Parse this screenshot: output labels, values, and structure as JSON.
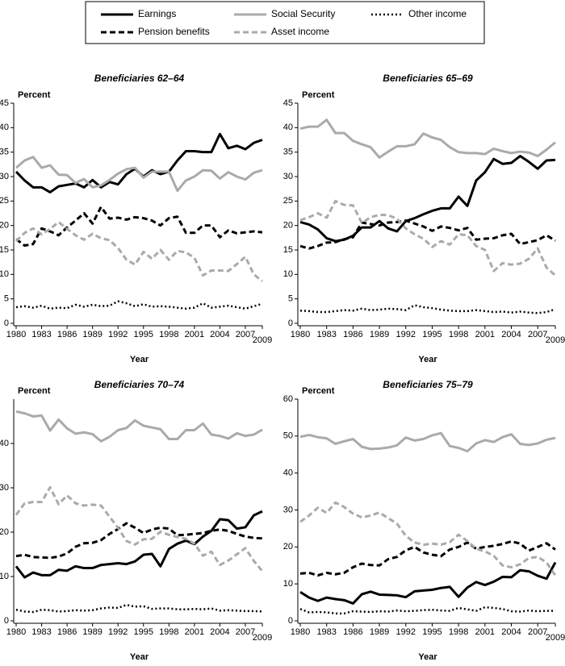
{
  "chart_data": [
    {
      "type": "line",
      "title": "Beneficiaries 62–64",
      "ylabel": "Percent",
      "xlabel": "Year",
      "x": [
        1980,
        1981,
        1982,
        1983,
        1984,
        1985,
        1986,
        1987,
        1988,
        1989,
        1990,
        1991,
        1992,
        1993,
        1994,
        1995,
        1996,
        1997,
        1998,
        1999,
        2000,
        2001,
        2002,
        2003,
        2004,
        2005,
        2006,
        2007,
        2008,
        2009
      ],
      "xlim": [
        1980,
        2009
      ],
      "xticks": [
        1980,
        1983,
        1986,
        1989,
        1992,
        1995,
        1998,
        2001,
        2004,
        2007,
        2009
      ],
      "ylim": [
        0,
        45
      ],
      "yticks": [
        0,
        5,
        10,
        15,
        20,
        25,
        30,
        35,
        40,
        45
      ],
      "series": [
        {
          "name": "Earnings",
          "color": "#000000",
          "style": "solid",
          "values": [
            31,
            29.2,
            27.8,
            27.8,
            26.8,
            28,
            28.3,
            28.6,
            27.8,
            29.3,
            27.8,
            28.9,
            28.4,
            30.5,
            31.6,
            30,
            31.3,
            30.5,
            31,
            33.3,
            35.2,
            35.2,
            35,
            35,
            38.7,
            35.8,
            36.3,
            35.6,
            36.9,
            37.5
          ]
        },
        {
          "name": "Social Security",
          "color": "#aaaaaa",
          "style": "solid",
          "values": [
            31.8,
            33.3,
            34,
            31.8,
            32.3,
            30.4,
            30.3,
            28.7,
            29.5,
            27.8,
            28.2,
            29.3,
            30.6,
            31.5,
            31.8,
            29.8,
            31,
            31,
            31,
            27.1,
            29.2,
            30,
            31.3,
            31.2,
            29.6,
            30.9,
            30,
            29.4,
            30.8,
            31.3
          ]
        },
        {
          "name": "Other income",
          "color": "#000000",
          "style": "dotted",
          "values": [
            3.3,
            3.5,
            3.2,
            3.6,
            3,
            3.2,
            3.1,
            3.8,
            3.4,
            3.8,
            3.5,
            3.6,
            4.5,
            4.1,
            3.5,
            3.9,
            3.4,
            3.5,
            3.4,
            3.2,
            3,
            3.2,
            4.1,
            3.2,
            3.4,
            3.6,
            3.3,
            3,
            3.5,
            4
          ]
        },
        {
          "name": "Pension benefits",
          "color": "#000000",
          "style": "dashed",
          "values": [
            17.2,
            15.9,
            16.2,
            19.4,
            18.8,
            18,
            19.6,
            21,
            22.5,
            20.4,
            23.8,
            21.4,
            21.6,
            21.2,
            21.7,
            21.5,
            21,
            20,
            21.5,
            21.8,
            18.5,
            18.5,
            20,
            20,
            17.6,
            19,
            18.4,
            18.6,
            18.8,
            18.6
          ]
        },
        {
          "name": "Asset income",
          "color": "#aaaaaa",
          "style": "dashed",
          "values": [
            16.8,
            18.5,
            19.4,
            18.2,
            19.3,
            20.7,
            19.3,
            18,
            17.1,
            18.3,
            17.4,
            17,
            15.4,
            13,
            12,
            14.6,
            13.2,
            15,
            13,
            14.8,
            14.5,
            13.4,
            9.8,
            10.8,
            10.8,
            10.7,
            12.1,
            13.6,
            10,
            8.6
          ]
        }
      ]
    },
    {
      "type": "line",
      "title": "Beneficiaries 65–69",
      "ylabel": "Percent",
      "xlabel": "Year",
      "x": [
        1980,
        1981,
        1982,
        1983,
        1984,
        1985,
        1986,
        1987,
        1988,
        1989,
        1990,
        1991,
        1992,
        1993,
        1994,
        1995,
        1996,
        1997,
        1998,
        1999,
        2000,
        2001,
        2002,
        2003,
        2004,
        2005,
        2006,
        2007,
        2008,
        2009
      ],
      "xlim": [
        1980,
        2009
      ],
      "xticks": [
        1980,
        1983,
        1986,
        1989,
        1992,
        1995,
        1998,
        2001,
        2004,
        2007,
        2009
      ],
      "ylim": [
        0,
        45
      ],
      "yticks": [
        0,
        5,
        10,
        15,
        20,
        25,
        30,
        35,
        40,
        45
      ],
      "series": [
        {
          "name": "Earnings",
          "color": "#000000",
          "style": "solid",
          "values": [
            20.7,
            20.2,
            19.2,
            17.4,
            16.8,
            17.1,
            17.9,
            19.6,
            19.6,
            20.9,
            19.4,
            18.8,
            20.9,
            21.5,
            22.3,
            23,
            23.5,
            23.5,
            25.9,
            24,
            29.2,
            30.9,
            33.6,
            32.6,
            32.8,
            34.2,
            33,
            31.6,
            33.3,
            33.4
          ]
        },
        {
          "name": "Social Security",
          "color": "#aaaaaa",
          "style": "solid",
          "values": [
            39.8,
            40.2,
            40.2,
            41.6,
            38.9,
            38.9,
            37.3,
            36.6,
            36,
            33.9,
            35.1,
            36.2,
            36.2,
            36.6,
            38.8,
            38,
            37.5,
            36,
            35,
            34.8,
            34.8,
            34.6,
            35.7,
            35.2,
            34.8,
            35.1,
            34.9,
            34.2,
            35.5,
            37
          ]
        },
        {
          "name": "Other income",
          "color": "#000000",
          "style": "dotted",
          "values": [
            2.6,
            2.5,
            2.3,
            2.3,
            2.5,
            2.7,
            2.6,
            3,
            2.7,
            2.8,
            3,
            2.9,
            2.7,
            3.7,
            3.3,
            3.1,
            2.8,
            2.6,
            2.5,
            2.5,
            2.7,
            2.5,
            2.3,
            2.4,
            2.2,
            2.4,
            2.2,
            2.1,
            2.3,
            2.9
          ]
        },
        {
          "name": "Pension benefits",
          "color": "#000000",
          "style": "dashed",
          "values": [
            15.8,
            15.3,
            15.8,
            16.5,
            16.6,
            17.2,
            17.6,
            20.6,
            20.3,
            20,
            20.6,
            20.7,
            21,
            20.4,
            19.8,
            18.9,
            19.8,
            19.5,
            19,
            19.5,
            17.1,
            17.3,
            17.4,
            18,
            18.3,
            16.2,
            16.6,
            17,
            18,
            16.9
          ]
        },
        {
          "name": "Asset income",
          "color": "#aaaaaa",
          "style": "dashed",
          "values": [
            21.1,
            21.7,
            22.5,
            21.6,
            25,
            24.2,
            24.1,
            20.5,
            21.7,
            22.2,
            22.1,
            21.4,
            19.4,
            18.2,
            17.3,
            15.6,
            16.8,
            16.1,
            18.2,
            18,
            15.8,
            15,
            10.7,
            12.3,
            12,
            12.2,
            13.2,
            15.3,
            11.4,
            9.8
          ]
        }
      ]
    },
    {
      "type": "line",
      "title": "Beneficiaries 70–74",
      "ylabel": "Percent",
      "xlabel": "Year",
      "x": [
        1980,
        1981,
        1982,
        1983,
        1984,
        1985,
        1986,
        1987,
        1988,
        1989,
        1990,
        1991,
        1992,
        1993,
        1994,
        1995,
        1996,
        1997,
        1998,
        1999,
        2000,
        2001,
        2002,
        2003,
        2004,
        2005,
        2006,
        2007,
        2008,
        2009
      ],
      "xlim": [
        1980,
        2009
      ],
      "xticks": [
        1980,
        1983,
        1986,
        1989,
        1992,
        1995,
        1998,
        2001,
        2004,
        2007,
        2009
      ],
      "ylim": [
        0,
        50
      ],
      "yticks": [
        0,
        10,
        20,
        30,
        40
      ],
      "series": [
        {
          "name": "Earnings",
          "color": "#000000",
          "style": "solid",
          "values": [
            12.3,
            9.8,
            10.9,
            10.3,
            10.3,
            11.5,
            11.3,
            12.3,
            11.9,
            11.9,
            12.6,
            12.8,
            13,
            12.8,
            13.4,
            14.9,
            15.1,
            12.3,
            16.2,
            17.4,
            18.1,
            17.3,
            19,
            20.3,
            22.9,
            22.7,
            20.8,
            21.1,
            23.8,
            24.7
          ]
        },
        {
          "name": "Social Security",
          "color": "#aaaaaa",
          "style": "solid",
          "values": [
            47.2,
            46.8,
            46.1,
            46.3,
            42.9,
            45.4,
            43.4,
            42.2,
            42.5,
            42.1,
            40.5,
            41.5,
            43,
            43.5,
            45.2,
            44,
            43.6,
            43.2,
            41,
            41,
            43,
            43,
            44.5,
            42,
            41.7,
            41.1,
            42.3,
            41.7,
            42,
            43.1
          ]
        },
        {
          "name": "Other income",
          "color": "#000000",
          "style": "dotted",
          "values": [
            2.5,
            2.1,
            2,
            2.5,
            2.4,
            2.1,
            2.2,
            2.4,
            2.3,
            2.4,
            2.8,
            3,
            2.9,
            3.6,
            3.2,
            3.3,
            2.7,
            2.8,
            2.8,
            2.6,
            2.6,
            2.7,
            2.6,
            2.8,
            2.3,
            2.4,
            2.3,
            2.2,
            2.2,
            2.1
          ]
        },
        {
          "name": "Pension benefits",
          "color": "#000000",
          "style": "dashed",
          "values": [
            14.6,
            14.9,
            14.4,
            14.3,
            14.2,
            14.5,
            15.2,
            16.7,
            17.5,
            17.6,
            18.2,
            19.6,
            20.7,
            22,
            21,
            19.8,
            20.6,
            21,
            20.8,
            19.3,
            19.4,
            19.6,
            19.8,
            20.3,
            20.6,
            20.3,
            19.6,
            19,
            18.7,
            18.6
          ]
        },
        {
          "name": "Asset income",
          "color": "#aaaaaa",
          "style": "dashed",
          "values": [
            23.9,
            26.5,
            26.8,
            26.8,
            30.1,
            26.3,
            28.3,
            26.5,
            26,
            26.2,
            26,
            23.5,
            21,
            18,
            17.2,
            18.4,
            18.5,
            20.1,
            19.4,
            18.9,
            18.5,
            17.4,
            14.7,
            15.6,
            12.6,
            13.6,
            15,
            16.4,
            13.5,
            11.2
          ]
        }
      ]
    },
    {
      "type": "line",
      "title": "Beneficiaries 75–79",
      "ylabel": "Percent",
      "xlabel": "Year",
      "x": [
        1980,
        1981,
        1982,
        1983,
        1984,
        1985,
        1986,
        1987,
        1988,
        1989,
        1990,
        1991,
        1992,
        1993,
        1994,
        1995,
        1996,
        1997,
        1998,
        1999,
        2000,
        2001,
        2002,
        2003,
        2004,
        2005,
        2006,
        2007,
        2008,
        2009
      ],
      "xlim": [
        1980,
        2009
      ],
      "xticks": [
        1980,
        1983,
        1986,
        1989,
        1992,
        1995,
        1998,
        2001,
        2004,
        2007,
        2009
      ],
      "ylim": [
        0,
        60
      ],
      "yticks": [
        0,
        10,
        20,
        30,
        40,
        50,
        60
      ],
      "series": [
        {
          "name": "Earnings",
          "color": "#000000",
          "style": "solid",
          "values": [
            7.8,
            6.3,
            5.4,
            6.3,
            5.9,
            5.6,
            4.7,
            7.2,
            7.9,
            7.1,
            7,
            6.9,
            6.4,
            8,
            8.2,
            8.4,
            8.9,
            9.2,
            6.5,
            9,
            10.5,
            9.7,
            10.6,
            11.9,
            11.8,
            13.7,
            13.4,
            12.2,
            11.4,
            15.8
          ]
        },
        {
          "name": "Social Security",
          "color": "#aaaaaa",
          "style": "solid",
          "values": [
            49.8,
            50.3,
            49.7,
            49.4,
            47.9,
            48.6,
            49.2,
            47.1,
            46.5,
            46.6,
            46.9,
            47.5,
            49.6,
            48.8,
            49.2,
            50.2,
            50.8,
            47.3,
            46.8,
            45.9,
            48,
            48.9,
            48.4,
            49.7,
            50.5,
            47.9,
            47.6,
            48,
            49,
            49.5
          ]
        },
        {
          "name": "Other income",
          "color": "#000000",
          "style": "dotted",
          "values": [
            3.2,
            2.3,
            2.4,
            2.3,
            2,
            2,
            2.6,
            2.5,
            2.4,
            2.6,
            2.5,
            2.8,
            2.6,
            2.7,
            2.9,
            3,
            2.8,
            2.7,
            3.5,
            3.1,
            2.7,
            3.7,
            3.5,
            3.2,
            2.6,
            2.5,
            2.8,
            2.6,
            2.7,
            2.7
          ]
        },
        {
          "name": "Pension benefits",
          "color": "#000000",
          "style": "dashed",
          "values": [
            12.8,
            13,
            12.3,
            13,
            12.6,
            13,
            14.5,
            15.5,
            15.1,
            15,
            16.7,
            17.3,
            19.1,
            20,
            18.5,
            17.9,
            17.5,
            19.3,
            20,
            21.2,
            19.5,
            20,
            20.3,
            20.8,
            21.5,
            20.9,
            19,
            20,
            21,
            19.3
          ]
        },
        {
          "name": "Asset income",
          "color": "#aaaaaa",
          "style": "dashed",
          "values": [
            26.8,
            28.5,
            30.6,
            29.2,
            32,
            30.8,
            29,
            28,
            28.5,
            29.3,
            27.8,
            26.3,
            23,
            21.2,
            20.6,
            20.9,
            20.6,
            21.3,
            23.3,
            21.6,
            19.5,
            18.8,
            17.6,
            15,
            14.5,
            15.3,
            17,
            17.3,
            15.8,
            12.3
          ]
        }
      ]
    }
  ]
}
